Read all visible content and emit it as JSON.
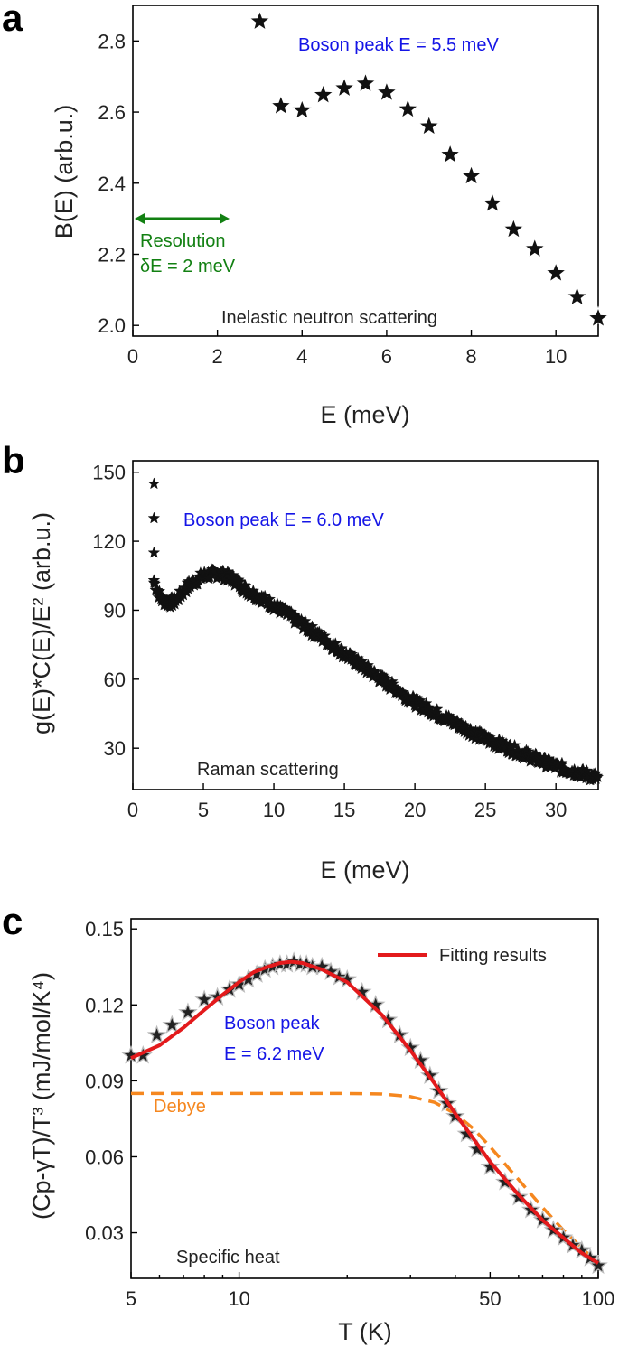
{
  "colors": {
    "boson": "#1515e6",
    "resolution": "#128012",
    "fit": "#e31a1c",
    "debye": "#f5871f",
    "stars": "#111111"
  },
  "chart_data": [
    {
      "panel": "a",
      "type": "scatter",
      "marker": "star",
      "xlabel": "E (meV)",
      "ylabel": "B(E) (arb.u.)",
      "xlim": [
        0,
        11
      ],
      "ylim": [
        1.97,
        2.9
      ],
      "xticks": [
        0,
        2,
        4,
        6,
        8,
        10
      ],
      "yticks": [
        2.0,
        2.2,
        2.4,
        2.6,
        2.8
      ],
      "xtick_labels": [
        "0",
        "2",
        "4",
        "6",
        "8",
        "10"
      ],
      "ytick_labels": [
        "2.0",
        "2.2",
        "2.4",
        "2.6",
        "2.8"
      ],
      "x": [
        3.0,
        3.5,
        4.0,
        4.5,
        5.0,
        5.5,
        6.0,
        6.5,
        7.0,
        7.5,
        8.0,
        8.5,
        9.0,
        9.5,
        10.0,
        10.5,
        11.0
      ],
      "y": [
        2.855,
        2.617,
        2.605,
        2.648,
        2.667,
        2.68,
        2.655,
        2.608,
        2.56,
        2.48,
        2.42,
        2.343,
        2.27,
        2.215,
        2.147,
        2.08,
        2.02
      ],
      "annotations": {
        "boson": "Boson peak E = 5.5 meV",
        "resolution_line1": "Resolution",
        "resolution_line2": "δE = 2 meV",
        "method": "Inelastic neutron scattering"
      },
      "resolution_arrow_x": [
        0,
        2.2
      ]
    },
    {
      "panel": "b",
      "type": "scatter",
      "marker": "star",
      "xlabel": "E (meV)",
      "ylabel": "g(E)*C(E)/E² (arb.u.)",
      "xlim": [
        0,
        33
      ],
      "ylim": [
        12,
        155
      ],
      "xticks": [
        0,
        5,
        10,
        15,
        20,
        25,
        30
      ],
      "yticks": [
        30,
        60,
        90,
        120,
        150
      ],
      "xtick_labels": [
        "0",
        "5",
        "10",
        "15",
        "20",
        "25",
        "30"
      ],
      "ytick_labels": [
        "30",
        "60",
        "90",
        "120",
        "150"
      ],
      "isolated_points": {
        "x": [
          1.5,
          1.5,
          1.5,
          1.5
        ],
        "y": [
          145,
          130,
          115,
          103
        ]
      },
      "curve_points": {
        "x": [
          1.5,
          2.0,
          2.5,
          3.0,
          4.0,
          5.0,
          6.0,
          7.0,
          8.0,
          10.0,
          12.0,
          15.0,
          20.0,
          25.0,
          30.0,
          33.0
        ],
        "y": [
          102,
          95,
          93,
          94,
          101,
          105,
          106,
          104,
          99,
          92,
          84,
          71,
          50,
          34,
          22,
          17
        ]
      },
      "annotations": {
        "boson": "Boson peak E = 6.0 meV",
        "method": "Raman scattering"
      }
    },
    {
      "panel": "c",
      "type": "scatter+line",
      "marker": "star",
      "xscale": "log",
      "xlabel": "T (K)",
      "ylabel": "(Cp-γT)/T³ (mJ/mol/K⁴)",
      "xlim": [
        5,
        100
      ],
      "ylim": [
        0.012,
        0.154
      ],
      "xticks": [
        5,
        10,
        50,
        100
      ],
      "yticks": [
        0.03,
        0.06,
        0.09,
        0.12,
        0.15
      ],
      "xtick_labels": [
        "5",
        "10",
        "50",
        "100"
      ],
      "ytick_labels": [
        "0.03",
        "0.06",
        "0.09",
        "0.12",
        "0.15"
      ],
      "data_points": {
        "x": [
          5.0,
          5.4,
          5.9,
          6.5,
          7.2,
          8.0,
          8.7,
          9.4,
          10.0,
          10.6,
          11.2,
          11.8,
          12.4,
          13.0,
          13.6,
          14.2,
          14.8,
          15.4,
          16.0,
          17.0,
          18.0,
          19.0,
          20.0,
          22.0,
          24.0,
          26.0,
          28.0,
          30.0,
          32.0,
          34.0,
          36.0,
          38.0,
          40.0,
          43.0,
          46.0,
          50.0,
          55.0,
          60.0,
          65.0,
          70.0,
          75.0,
          80.0,
          85.0,
          90.0,
          95.0,
          100.0
        ],
        "y": [
          0.1,
          0.1,
          0.108,
          0.112,
          0.117,
          0.122,
          0.123,
          0.126,
          0.128,
          0.13,
          0.132,
          0.134,
          0.135,
          0.136,
          0.136,
          0.137,
          0.136,
          0.136,
          0.135,
          0.135,
          0.133,
          0.131,
          0.13,
          0.125,
          0.12,
          0.114,
          0.108,
          0.103,
          0.098,
          0.092,
          0.086,
          0.081,
          0.076,
          0.069,
          0.063,
          0.056,
          0.05,
          0.044,
          0.039,
          0.035,
          0.031,
          0.028,
          0.025,
          0.023,
          0.02,
          0.017
        ]
      },
      "series": [
        {
          "name": "Fitting results",
          "x": [
            5,
            6,
            7,
            8,
            9,
            10,
            11,
            12,
            13,
            14,
            15,
            17,
            20,
            25,
            30,
            35,
            40,
            50,
            60,
            70,
            80,
            90,
            100
          ],
          "values": [
            0.099,
            0.104,
            0.111,
            0.118,
            0.124,
            0.129,
            0.133,
            0.135,
            0.1365,
            0.137,
            0.1365,
            0.134,
            0.129,
            0.116,
            0.102,
            0.089,
            0.077,
            0.058,
            0.045,
            0.035,
            0.028,
            0.022,
            0.018
          ]
        },
        {
          "name": "Debye",
          "x": [
            5,
            10,
            15,
            20,
            25,
            30,
            35,
            40,
            45,
            50,
            60,
            70,
            80,
            90,
            100
          ],
          "values": [
            0.085,
            0.085,
            0.085,
            0.085,
            0.0848,
            0.0838,
            0.0815,
            0.077,
            0.071,
            0.064,
            0.051,
            0.04,
            0.031,
            0.024,
            0.018
          ]
        }
      ],
      "annotations": {
        "legend": "Fitting results",
        "boson_line1": "Boson peak",
        "boson_line2": "E = 6.2 meV",
        "debye": "Debye",
        "method": "Specific heat"
      }
    }
  ],
  "panel_labels": [
    "a",
    "b",
    "c"
  ]
}
